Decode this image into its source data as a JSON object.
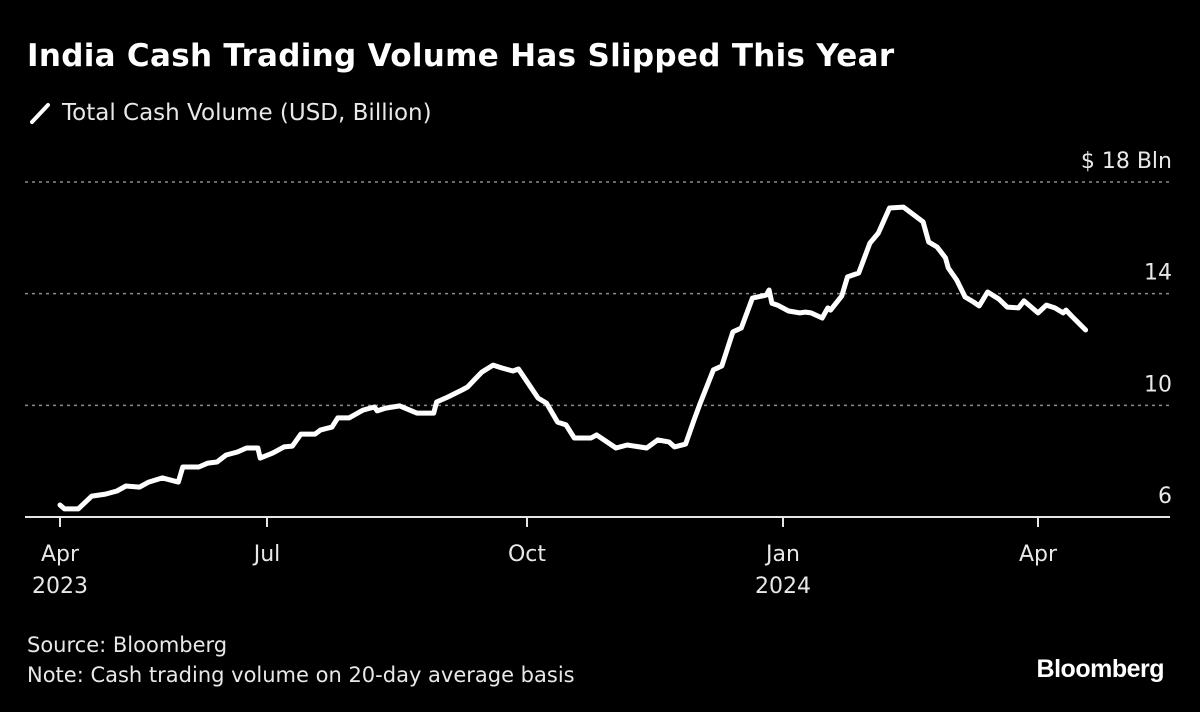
{
  "chart_data": {
    "type": "line",
    "title": "India Cash Trading Volume Has Slipped This Year",
    "xlabel": "",
    "ylabel": "",
    "ylim": [
      6,
      18
    ],
    "y_ticks": [
      6,
      10,
      14,
      18
    ],
    "y_tick_labels": [
      "6",
      "10",
      "14",
      "$ 18 Bln"
    ],
    "x_ticks": [
      {
        "date": "2023-04-01",
        "label": "Apr",
        "year": "2023"
      },
      {
        "date": "2023-07-01",
        "label": "Jul",
        "year": ""
      },
      {
        "date": "2023-10-01",
        "label": "Oct",
        "year": ""
      },
      {
        "date": "2024-01-01",
        "label": "Jan",
        "year": "2024"
      },
      {
        "date": "2024-04-01",
        "label": "Apr",
        "year": ""
      }
    ],
    "grid": "horizontal dotted",
    "legend_position": "top-left",
    "line_color": "#ffffff",
    "series": [
      {
        "name": "Total Cash Volume (USD, Billion)",
        "points": [
          [
            "2023-04-01",
            6.43
          ],
          [
            "2023-04-03",
            6.29
          ],
          [
            "2023-04-09",
            6.29
          ],
          [
            "2023-04-15",
            6.75
          ],
          [
            "2023-04-21",
            6.82
          ],
          [
            "2023-04-26",
            6.93
          ],
          [
            "2023-04-30",
            7.11
          ],
          [
            "2023-05-06",
            7.07
          ],
          [
            "2023-05-10",
            7.25
          ],
          [
            "2023-05-16",
            7.4
          ],
          [
            "2023-05-23",
            7.25
          ],
          [
            "2023-05-25",
            7.79
          ],
          [
            "2023-06-01",
            7.79
          ],
          [
            "2023-06-05",
            7.93
          ],
          [
            "2023-06-09",
            7.97
          ],
          [
            "2023-06-13",
            8.22
          ],
          [
            "2023-06-18",
            8.33
          ],
          [
            "2023-06-22",
            8.47
          ],
          [
            "2023-06-27",
            8.47
          ],
          [
            "2023-06-28",
            8.11
          ],
          [
            "2023-07-03",
            8.29
          ],
          [
            "2023-07-07",
            8.51
          ],
          [
            "2023-07-10",
            8.54
          ],
          [
            "2023-07-13",
            8.97
          ],
          [
            "2023-07-18",
            8.97
          ],
          [
            "2023-07-20",
            9.12
          ],
          [
            "2023-07-24",
            9.22
          ],
          [
            "2023-07-26",
            9.55
          ],
          [
            "2023-07-30",
            9.55
          ],
          [
            "2023-08-04",
            9.83
          ],
          [
            "2023-08-08",
            9.94
          ],
          [
            "2023-08-09",
            9.8
          ],
          [
            "2023-08-12",
            9.9
          ],
          [
            "2023-08-17",
            9.98
          ],
          [
            "2023-08-23",
            9.72
          ],
          [
            "2023-08-29",
            9.72
          ],
          [
            "2023-08-30",
            10.12
          ],
          [
            "2023-09-03",
            10.3
          ],
          [
            "2023-09-08",
            10.55
          ],
          [
            "2023-09-10",
            10.66
          ],
          [
            "2023-09-13",
            10.98
          ],
          [
            "2023-09-15",
            11.19
          ],
          [
            "2023-09-19",
            11.44
          ],
          [
            "2023-09-22",
            11.34
          ],
          [
            "2023-09-26",
            11.23
          ],
          [
            "2023-09-28",
            11.3
          ],
          [
            "2023-10-05",
            10.26
          ],
          [
            "2023-10-08",
            10.08
          ],
          [
            "2023-10-12",
            9.4
          ],
          [
            "2023-10-15",
            9.3
          ],
          [
            "2023-10-18",
            8.83
          ],
          [
            "2023-10-24",
            8.83
          ],
          [
            "2023-10-26",
            8.94
          ],
          [
            "2023-11-02",
            8.47
          ],
          [
            "2023-11-06",
            8.58
          ],
          [
            "2023-11-13",
            8.47
          ],
          [
            "2023-11-17",
            8.76
          ],
          [
            "2023-11-21",
            8.69
          ],
          [
            "2023-11-23",
            8.51
          ],
          [
            "2023-11-27",
            8.61
          ],
          [
            "2023-11-30",
            9.47
          ],
          [
            "2023-12-02",
            10.01
          ],
          [
            "2023-12-07",
            11.27
          ],
          [
            "2023-12-10",
            11.41
          ],
          [
            "2023-12-14",
            12.63
          ],
          [
            "2023-12-17",
            12.77
          ],
          [
            "2023-12-21",
            13.84
          ],
          [
            "2023-12-26",
            13.95
          ],
          [
            "2023-12-27",
            14.13
          ],
          [
            "2023-12-28",
            13.66
          ],
          [
            "2023-12-30",
            13.59
          ],
          [
            "2024-01-03",
            13.38
          ],
          [
            "2024-01-07",
            13.31
          ],
          [
            "2024-01-09",
            13.34
          ],
          [
            "2024-01-11",
            13.31
          ],
          [
            "2024-01-15",
            13.13
          ],
          [
            "2024-01-17",
            13.49
          ],
          [
            "2024-01-18",
            13.41
          ],
          [
            "2024-01-22",
            13.92
          ],
          [
            "2024-01-24",
            14.6
          ],
          [
            "2024-01-28",
            14.74
          ],
          [
            "2024-02-01",
            15.81
          ],
          [
            "2024-02-04",
            16.17
          ],
          [
            "2024-02-08",
            17.07
          ],
          [
            "2024-02-13",
            17.1
          ],
          [
            "2024-02-20",
            16.57
          ],
          [
            "2024-02-22",
            15.85
          ],
          [
            "2024-02-25",
            15.67
          ],
          [
            "2024-02-28",
            15.28
          ],
          [
            "2024-02-29",
            14.92
          ],
          [
            "2024-03-03",
            14.49
          ],
          [
            "2024-03-06",
            13.88
          ],
          [
            "2024-03-09",
            13.7
          ],
          [
            "2024-03-11",
            13.56
          ],
          [
            "2024-03-14",
            14.06
          ],
          [
            "2024-03-18",
            13.81
          ],
          [
            "2024-03-21",
            13.52
          ],
          [
            "2024-03-25",
            13.49
          ],
          [
            "2024-03-27",
            13.74
          ],
          [
            "2024-04-01",
            13.31
          ],
          [
            "2024-04-04",
            13.59
          ],
          [
            "2024-04-07",
            13.49
          ],
          [
            "2024-04-10",
            13.31
          ],
          [
            "2024-04-11",
            13.41
          ],
          [
            "2024-04-13",
            13.2
          ],
          [
            "2024-04-18",
            12.7
          ]
        ]
      }
    ]
  },
  "legend": {
    "icon": "slash-line-icon",
    "label": "Total Cash Volume (USD, Billion)"
  },
  "footer": {
    "source": "Source: Bloomberg",
    "note": "Note: Cash trading volume on 20-day average basis",
    "logo": "Bloomberg"
  }
}
